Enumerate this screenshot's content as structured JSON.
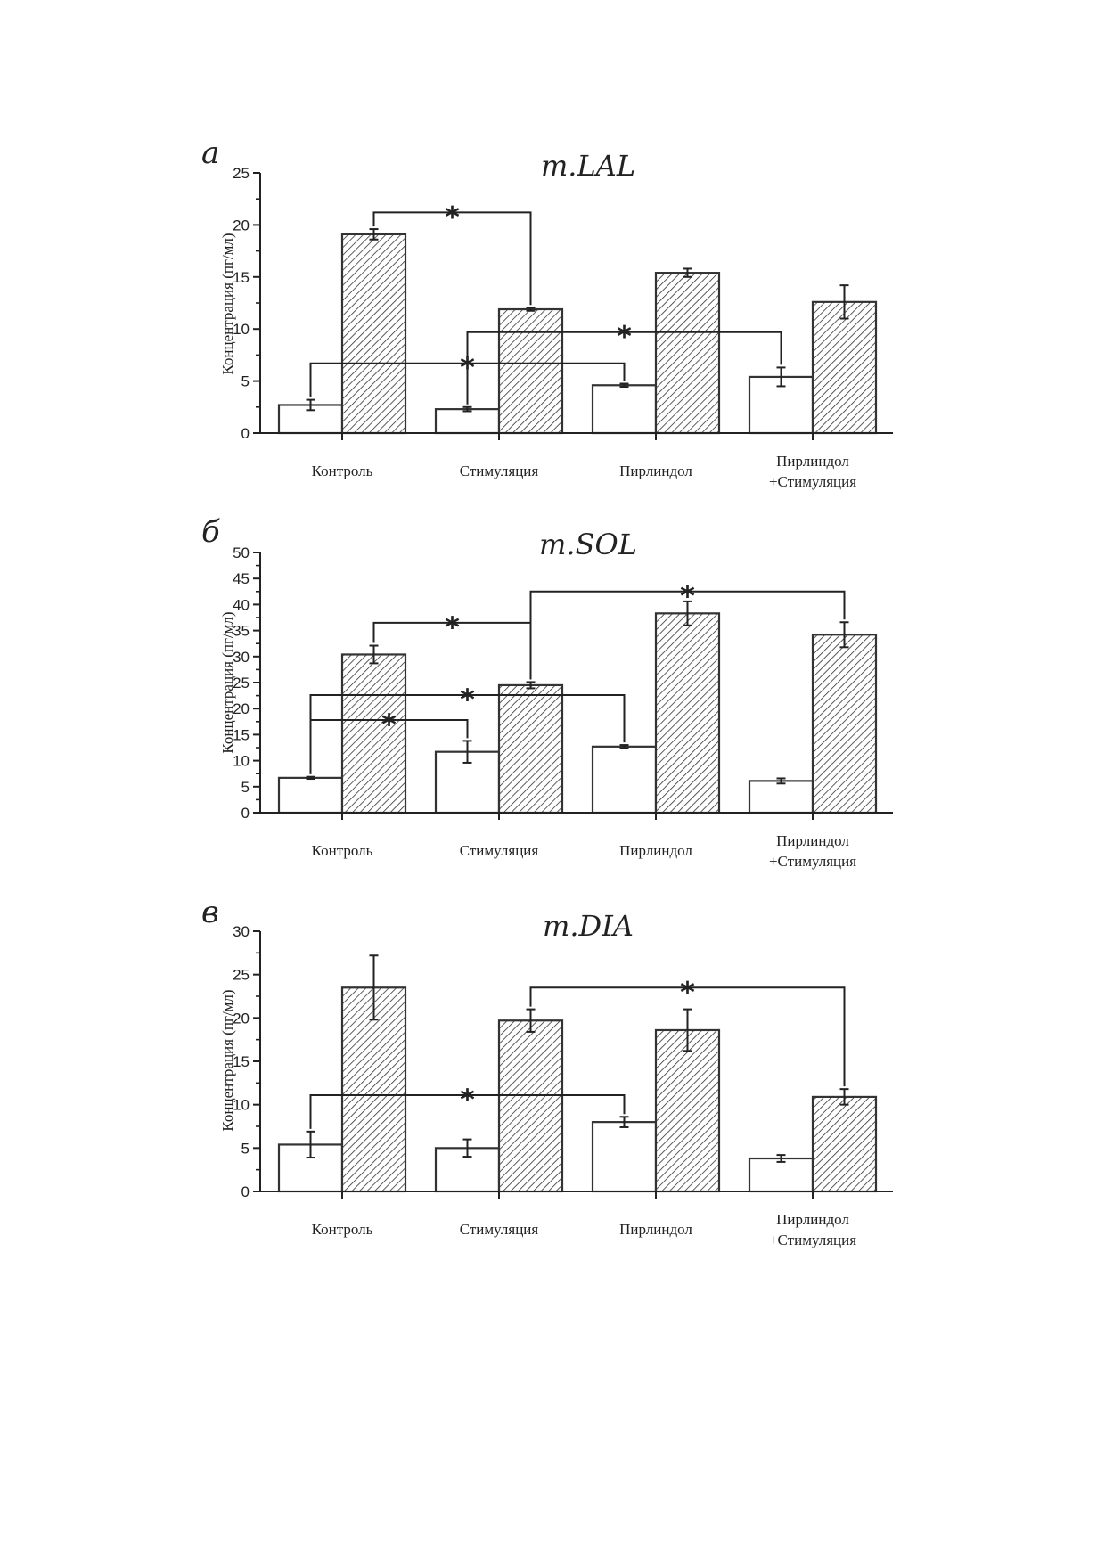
{
  "chart_data": [
    {
      "type": "bar",
      "panel": "а",
      "title": "m.LAL",
      "ylabel": "Концентрация (пг/мл)",
      "xlabel": "",
      "ylim": [
        0,
        25
      ],
      "yticks": [
        0,
        5,
        10,
        15,
        20,
        25
      ],
      "categories": [
        [
          "Контроль"
        ],
        [
          "Стимуляция"
        ],
        [
          "Пирлиндол"
        ],
        [
          "Пирлиндол",
          "+Стимуляция"
        ]
      ],
      "series": [
        {
          "fill": "open",
          "values": [
            2.7,
            2.3,
            4.6,
            5.4
          ],
          "errors": [
            0.5,
            0.2,
            0.15,
            0.9
          ]
        },
        {
          "fill": "hatched",
          "values": [
            19.1,
            11.9,
            15.4,
            12.6
          ],
          "errors": [
            0.5,
            0.15,
            0.4,
            1.6
          ]
        }
      ],
      "significance": [
        {
          "from": [
            0,
            1
          ],
          "to": [
            1,
            1
          ],
          "y": 21.2,
          "label": "*"
        },
        {
          "from": [
            1,
            0
          ],
          "to": [
            3,
            0
          ],
          "y": 9.7,
          "label": "*"
        },
        {
          "from": [
            0,
            0
          ],
          "to": [
            2,
            0
          ],
          "y": 6.7,
          "label": "*"
        }
      ]
    },
    {
      "type": "bar",
      "panel": "б",
      "title": "m.SOL",
      "ylabel": "Концентрация (пг/мл)",
      "xlabel": "",
      "ylim": [
        0,
        50
      ],
      "yticks": [
        0,
        5,
        10,
        15,
        20,
        25,
        30,
        35,
        40,
        45,
        50
      ],
      "categories": [
        [
          "Контроль"
        ],
        [
          "Стимуляция"
        ],
        [
          "Пирлиндол"
        ],
        [
          "Пирлиндол",
          "+Стимуляция"
        ]
      ],
      "series": [
        {
          "fill": "open",
          "values": [
            6.7,
            11.7,
            12.7,
            6.1
          ],
          "errors": [
            0.2,
            2.1,
            0.3,
            0.5
          ]
        },
        {
          "fill": "hatched",
          "values": [
            30.4,
            24.5,
            38.3,
            34.2
          ],
          "errors": [
            1.7,
            0.6,
            2.3,
            2.4
          ]
        }
      ],
      "significance": [
        {
          "from": [
            1,
            1
          ],
          "to": [
            3,
            1
          ],
          "y": 42.5,
          "label": "*"
        },
        {
          "from": [
            0,
            1
          ],
          "to": [
            1,
            1
          ],
          "y": 36.5,
          "label": "*"
        },
        {
          "from": [
            0,
            0
          ],
          "to": [
            2,
            0
          ],
          "y": 22.6,
          "label": "*"
        },
        {
          "from": [
            0,
            0
          ],
          "to": [
            1,
            0
          ],
          "y": 17.8,
          "label": "*"
        }
      ]
    },
    {
      "type": "bar",
      "panel": "в",
      "title": "m.DIA",
      "ylabel": "Концентрация (пг/мл)",
      "xlabel": "",
      "ylim": [
        0,
        30
      ],
      "yticks": [
        0,
        5,
        10,
        15,
        20,
        25,
        30
      ],
      "categories": [
        [
          "Контроль"
        ],
        [
          "Стимуляция"
        ],
        [
          "Пирлиндол"
        ],
        [
          "Пирлиндол",
          "+Стимуляция"
        ]
      ],
      "series": [
        {
          "fill": "open",
          "values": [
            5.4,
            5.0,
            8.0,
            3.8
          ],
          "errors": [
            1.5,
            1.0,
            0.6,
            0.4
          ]
        },
        {
          "fill": "hatched",
          "values": [
            23.5,
            19.7,
            18.6,
            10.9
          ],
          "errors": [
            3.7,
            1.3,
            2.4,
            0.9
          ]
        }
      ],
      "significance": [
        {
          "from": [
            1,
            1
          ],
          "to": [
            3,
            1
          ],
          "y": 23.5,
          "label": "*"
        },
        {
          "from": [
            0,
            0
          ],
          "to": [
            2,
            0
          ],
          "y": 11.1,
          "label": "*"
        }
      ]
    }
  ]
}
